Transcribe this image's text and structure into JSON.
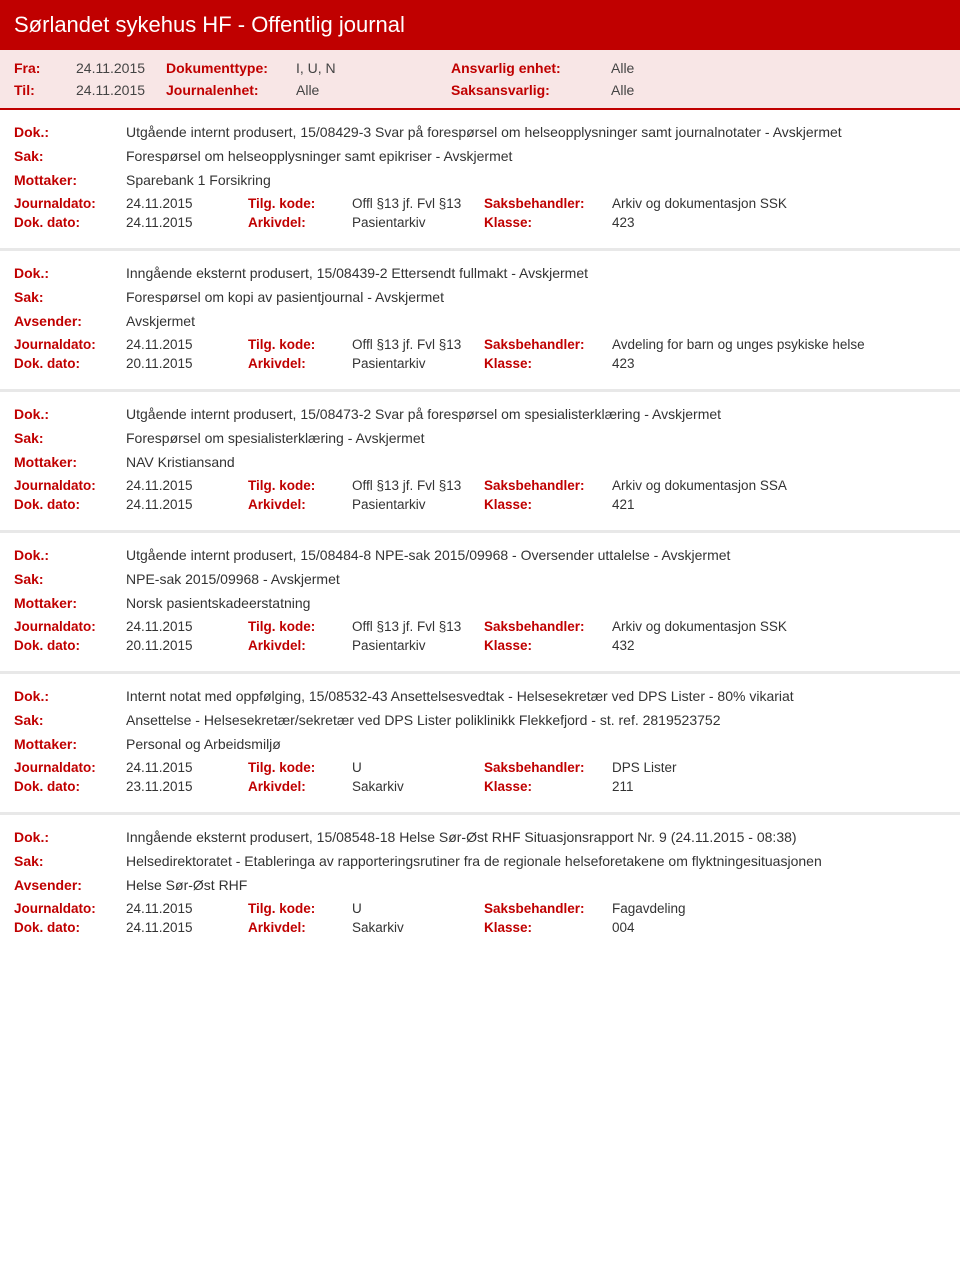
{
  "colors": {
    "brand_red": "#c00000",
    "header_bg": "#c00000",
    "filter_bg": "#f8e6e6",
    "text": "#333333",
    "divider": "#e8e8e8"
  },
  "header": {
    "title": "Sørlandet sykehus HF - Offentlig journal"
  },
  "filter": {
    "fra_label": "Fra:",
    "fra_value": "24.11.2015",
    "til_label": "Til:",
    "til_value": "24.11.2015",
    "doktype_label": "Dokumenttype:",
    "doktype_value": "I, U, N",
    "journalenhet_label": "Journalenhet:",
    "journalenhet_value": "Alle",
    "ansvarlig_label": "Ansvarlig enhet:",
    "ansvarlig_value": "Alle",
    "saksansvarlig_label": "Saksansvarlig:",
    "saksansvarlig_value": "Alle"
  },
  "labels": {
    "dok": "Dok.:",
    "sak": "Sak:",
    "mottaker": "Mottaker:",
    "avsender": "Avsender:",
    "journaldato": "Journaldato:",
    "dokdato": "Dok. dato:",
    "tilgkode": "Tilg. kode:",
    "arkivdel": "Arkivdel:",
    "saksbehandler": "Saksbehandler:",
    "klasse": "Klasse:"
  },
  "entries": [
    {
      "dok": "Utgående internt produsert, 15/08429-3 Svar på forespørsel om helseopplysninger samt journalnotater - Avskjermet",
      "sak": "Forespørsel om helseopplysninger samt epikriser - Avskjermet",
      "party_label": "Mottaker:",
      "party_value": "Sparebank 1 Forsikring",
      "journaldato": "24.11.2015",
      "tilgkode": "Offl §13 jf. Fvl §13",
      "saksbehandler": "Arkiv og dokumentasjon SSK",
      "dokdato": "24.11.2015",
      "arkivdel": "Pasientarkiv",
      "klasse": "423"
    },
    {
      "dok": "Inngående eksternt produsert, 15/08439-2 Ettersendt fullmakt - Avskjermet",
      "sak": "Forespørsel om kopi av pasientjournal - Avskjermet",
      "party_label": "Avsender:",
      "party_value": "Avskjermet",
      "journaldato": "24.11.2015",
      "tilgkode": "Offl §13 jf. Fvl §13",
      "saksbehandler": "Avdeling for barn og unges psykiske helse",
      "dokdato": "20.11.2015",
      "arkivdel": "Pasientarkiv",
      "klasse": "423"
    },
    {
      "dok": "Utgående internt produsert, 15/08473-2 Svar på forespørsel om spesialisterklæring - Avskjermet",
      "sak": "Forespørsel om spesialisterklæring - Avskjermet",
      "party_label": "Mottaker:",
      "party_value": "NAV Kristiansand",
      "journaldato": "24.11.2015",
      "tilgkode": "Offl §13 jf. Fvl §13",
      "saksbehandler": "Arkiv og dokumentasjon SSA",
      "dokdato": "24.11.2015",
      "arkivdel": "Pasientarkiv",
      "klasse": "421"
    },
    {
      "dok": "Utgående internt produsert, 15/08484-8 NPE-sak 2015/09968 - Oversender uttalelse - Avskjermet",
      "sak": "NPE-sak 2015/09968 - Avskjermet",
      "party_label": "Mottaker:",
      "party_value": "Norsk pasientskadeerstatning",
      "journaldato": "24.11.2015",
      "tilgkode": "Offl §13 jf. Fvl §13",
      "saksbehandler": "Arkiv og dokumentasjon SSK",
      "dokdato": "20.11.2015",
      "arkivdel": "Pasientarkiv",
      "klasse": "432"
    },
    {
      "dok": "Internt notat med oppfølging, 15/08532-43 Ansettelsesvedtak - Helsesekretær ved DPS Lister - 80% vikariat",
      "sak": "Ansettelse - Helsesekretær/sekretær ved DPS Lister poliklinikk Flekkefjord - st. ref. 2819523752",
      "party_label": "Mottaker:",
      "party_value": "Personal og Arbeidsmiljø",
      "journaldato": "24.11.2015",
      "tilgkode": "U",
      "saksbehandler": "DPS Lister",
      "dokdato": "23.11.2015",
      "arkivdel": "Sakarkiv",
      "klasse": "211"
    },
    {
      "dok": "Inngående eksternt produsert, 15/08548-18 Helse Sør-Øst RHF Situasjonsrapport Nr. 9 (24.11.2015 - 08:38)",
      "sak": "Helsedirektoratet - Etableringa av rapporteringsrutiner fra de regionale helseforetakene om flyktningesituasjonen",
      "party_label": "Avsender:",
      "party_value": "Helse Sør-Øst RHF",
      "journaldato": "24.11.2015",
      "tilgkode": "U",
      "saksbehandler": "Fagavdeling",
      "dokdato": "24.11.2015",
      "arkivdel": "Sakarkiv",
      "klasse": "004"
    }
  ]
}
